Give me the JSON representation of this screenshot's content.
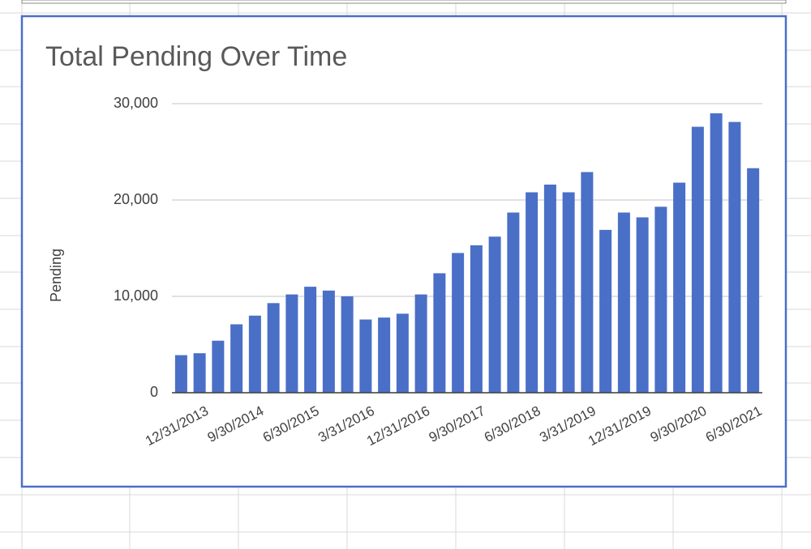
{
  "chart_data": {
    "type": "bar",
    "title": "Total Pending Over Time",
    "y_label": "Pending",
    "categories": [
      null,
      "12/31/2013",
      null,
      null,
      "9/30/2014",
      null,
      null,
      "6/30/2015",
      null,
      null,
      "3/31/2016",
      null,
      null,
      "12/31/2016",
      null,
      null,
      "9/30/2017",
      null,
      null,
      "6/30/2018",
      null,
      null,
      "3/31/2019",
      null,
      null,
      "12/31/2019",
      null,
      null,
      "9/30/2020",
      null,
      null,
      "6/30/2021"
    ],
    "values": [
      3900,
      4100,
      5400,
      7100,
      8000,
      9300,
      10200,
      11000,
      10600,
      10000,
      7600,
      7800,
      8200,
      10200,
      12400,
      14500,
      15300,
      16200,
      18700,
      20800,
      21600,
      20800,
      22900,
      16900,
      18700,
      18200,
      19300,
      21800,
      27600,
      29000,
      28100,
      23300
    ],
    "color": "#4a6fc7",
    "ylim": [
      0,
      30000
    ],
    "yticks": [
      0,
      {
        "value": 10000,
        "label": "10,000"
      },
      {
        "value": 20000,
        "label": "20,000"
      },
      {
        "value": 30000,
        "label": "30,000"
      }
    ],
    "grid": true
  }
}
